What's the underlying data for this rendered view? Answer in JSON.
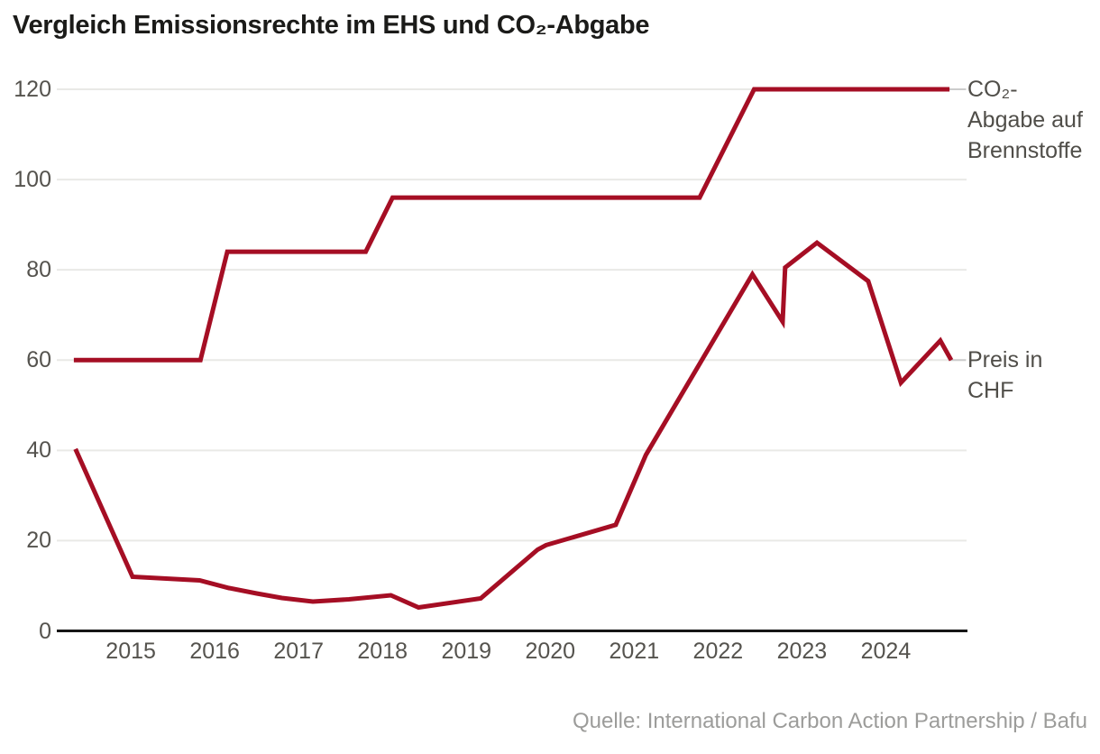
{
  "title": "Vergleich Emissionsrechte im EHS und CO₂-Abgabe",
  "source": "Quelle: International Carbon Action Partnership / Bafu",
  "colors": {
    "line": "#a50e24",
    "grid": "#e9e9e6",
    "axis": "#161616",
    "tick_text": "#55534e",
    "label_text": "#504e49",
    "source_text": "#9c9c9a",
    "connector": "#cccccc",
    "background": "#ffffff"
  },
  "chart_data": {
    "type": "line",
    "title": "Vergleich Emissionsrechte im EHS und CO₂-Abgabe",
    "xlabel": "",
    "ylabel": "",
    "xlim": [
      2014.3,
      2024.78
    ],
    "ylim": [
      0,
      120
    ],
    "x_ticks": [
      2015,
      2016,
      2017,
      2018,
      2019,
      2020,
      2021,
      2022,
      2023,
      2024
    ],
    "y_ticks": [
      0,
      20,
      40,
      60,
      80,
      100,
      120
    ],
    "grid": "horizontal",
    "legend_position": "right-edge-direct-labels",
    "series": [
      {
        "name": "CO₂-Abgabe auf Brennstoffe",
        "label_lines": [
          "CO₂-",
          "Abgabe auf",
          "Brennstoffe"
        ],
        "label_anchor_value": 120,
        "color": "#a50e24",
        "points": [
          [
            2014.32,
            60
          ],
          [
            2015.83,
            60
          ],
          [
            2016.15,
            84
          ],
          [
            2017.8,
            84
          ],
          [
            2018.12,
            96
          ],
          [
            2021.78,
            96
          ],
          [
            2022.43,
            120
          ],
          [
            2024.76,
            120
          ]
        ]
      },
      {
        "name": "Preis in CHF",
        "label_lines": [
          "Preis in",
          "CHF"
        ],
        "label_anchor_value": 60,
        "color": "#a50e24",
        "points": [
          [
            2014.34,
            40.3
          ],
          [
            2015.02,
            12
          ],
          [
            2015.82,
            11.2
          ],
          [
            2016.17,
            9.5
          ],
          [
            2016.5,
            8.3
          ],
          [
            2016.8,
            7.3
          ],
          [
            2017.17,
            6.5
          ],
          [
            2017.6,
            7.0
          ],
          [
            2018.1,
            7.9
          ],
          [
            2018.43,
            5.2
          ],
          [
            2019.17,
            7.2
          ],
          [
            2019.85,
            18
          ],
          [
            2019.95,
            19
          ],
          [
            2020.78,
            23.5
          ],
          [
            2021.14,
            39
          ],
          [
            2022.41,
            79
          ],
          [
            2022.77,
            68.5
          ],
          [
            2022.8,
            80.5
          ],
          [
            2023.18,
            86
          ],
          [
            2023.79,
            77.5
          ],
          [
            2024.18,
            55
          ],
          [
            2024.65,
            64.3
          ],
          [
            2024.78,
            60
          ]
        ]
      }
    ]
  }
}
